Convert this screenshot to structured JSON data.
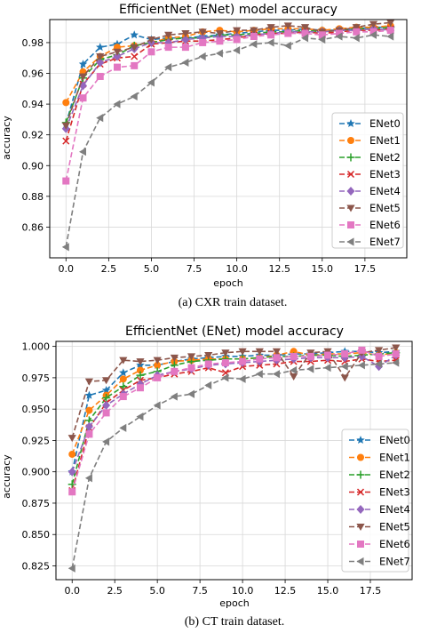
{
  "chart_data": [
    {
      "type": "line",
      "title": "EfficientNet (ENet) model accuracy",
      "xlabel": "epoch",
      "ylabel": "accuracy",
      "xlim": [
        -0.95,
        19.95
      ],
      "ylim": [
        0.84,
        0.995
      ],
      "xticks": [
        0.0,
        2.5,
        5.0,
        7.5,
        10.0,
        12.5,
        15.0,
        17.5
      ],
      "xtick_labels": [
        "0.0",
        "2.5",
        "5.0",
        "7.5",
        "10.0",
        "12.5",
        "15.0",
        "17.5"
      ],
      "yticks": [
        0.86,
        0.88,
        0.9,
        0.92,
        0.94,
        0.96,
        0.98
      ],
      "ytick_labels": [
        "0.86",
        "0.88",
        "0.90",
        "0.92",
        "0.94",
        "0.96",
        "0.98"
      ],
      "grid": true,
      "legend_position": "right",
      "caption": "(a) CXR train dataset.",
      "x": [
        0,
        1,
        2,
        3,
        4,
        5,
        6,
        7,
        8,
        9,
        10,
        11,
        12,
        13,
        14,
        15,
        16,
        17,
        18,
        19
      ],
      "series": [
        {
          "name": "ENet0",
          "color": "#1f77b4",
          "marker": "star",
          "values": [
            0.927,
            0.966,
            0.977,
            0.979,
            0.985,
            0.982,
            0.983,
            0.983,
            0.984,
            0.985,
            0.986,
            0.987,
            0.988,
            0.988,
            0.989,
            0.988,
            0.988,
            0.989,
            0.99,
            0.99
          ]
        },
        {
          "name": "ENet1",
          "color": "#ff7f0e",
          "marker": "circle",
          "values": [
            0.941,
            0.961,
            0.971,
            0.977,
            0.978,
            0.98,
            0.983,
            0.984,
            0.987,
            0.988,
            0.987,
            0.988,
            0.989,
            0.989,
            0.989,
            0.988,
            0.989,
            0.99,
            0.99,
            0.991
          ]
        },
        {
          "name": "ENet2",
          "color": "#2ca02c",
          "marker": "plus",
          "values": [
            0.928,
            0.957,
            0.969,
            0.972,
            0.978,
            0.98,
            0.982,
            0.983,
            0.983,
            0.985,
            0.985,
            0.986,
            0.987,
            0.987,
            0.988,
            0.987,
            0.988,
            0.989,
            0.989,
            0.99
          ]
        },
        {
          "name": "ENet3",
          "color": "#d62728",
          "marker": "x",
          "values": [
            0.916,
            0.953,
            0.966,
            0.97,
            0.971,
            0.979,
            0.98,
            0.981,
            0.981,
            0.982,
            0.983,
            0.985,
            0.986,
            0.986,
            0.987,
            0.986,
            0.987,
            0.988,
            0.988,
            0.989
          ]
        },
        {
          "name": "ENet4",
          "color": "#9467bd",
          "marker": "diamond",
          "values": [
            0.924,
            0.952,
            0.967,
            0.971,
            0.976,
            0.98,
            0.98,
            0.982,
            0.983,
            0.984,
            0.984,
            0.985,
            0.986,
            0.987,
            0.987,
            0.987,
            0.988,
            0.988,
            0.989,
            0.988
          ]
        },
        {
          "name": "ENet5",
          "color": "#8c564b",
          "marker": "triangle-down",
          "values": [
            0.926,
            0.958,
            0.971,
            0.974,
            0.977,
            0.982,
            0.985,
            0.986,
            0.987,
            0.986,
            0.988,
            0.988,
            0.99,
            0.991,
            0.99,
            0.987,
            0.988,
            0.99,
            0.992,
            0.993
          ]
        },
        {
          "name": "ENet6",
          "color": "#e377c2",
          "marker": "square",
          "values": [
            0.89,
            0.944,
            0.958,
            0.964,
            0.965,
            0.974,
            0.977,
            0.977,
            0.98,
            0.981,
            0.982,
            0.984,
            0.985,
            0.986,
            0.986,
            0.985,
            0.986,
            0.987,
            0.987,
            0.988
          ]
        },
        {
          "name": "ENet7",
          "color": "#7f7f7f",
          "marker": "triangle-left",
          "values": [
            0.847,
            0.909,
            0.931,
            0.94,
            0.945,
            0.954,
            0.964,
            0.967,
            0.971,
            0.973,
            0.975,
            0.979,
            0.98,
            0.978,
            0.983,
            0.982,
            0.984,
            0.983,
            0.985,
            0.984
          ]
        }
      ]
    },
    {
      "type": "line",
      "title": "EfficientNet (ENet) model accuracy",
      "xlabel": "epoch",
      "ylabel": "accuracy",
      "xlim": [
        -0.95,
        19.95
      ],
      "ylim": [
        0.814,
        1.004
      ],
      "xticks": [
        0.0,
        2.5,
        5.0,
        7.5,
        10.0,
        12.5,
        15.0,
        17.5
      ],
      "xtick_labels": [
        "0.0",
        "2.5",
        "5.0",
        "7.5",
        "10.0",
        "12.5",
        "15.0",
        "17.5"
      ],
      "yticks": [
        0.825,
        0.85,
        0.875,
        0.9,
        0.925,
        0.95,
        0.975,
        1.0
      ],
      "ytick_labels": [
        "0.825",
        "0.850",
        "0.875",
        "0.900",
        "0.925",
        "0.950",
        "0.975",
        "1.000"
      ],
      "grid": true,
      "legend_position": "lower right",
      "caption": "(b) CT train dataset.",
      "x": [
        0,
        1,
        2,
        3,
        4,
        5,
        6,
        7,
        8,
        9,
        10,
        11,
        12,
        13,
        14,
        15,
        16,
        17,
        18,
        19
      ],
      "series": [
        {
          "name": "ENet0",
          "color": "#1f77b4",
          "marker": "star",
          "values": [
            0.9,
            0.961,
            0.965,
            0.979,
            0.985,
            0.985,
            0.988,
            0.99,
            0.991,
            0.992,
            0.992,
            0.993,
            0.993,
            0.994,
            0.994,
            0.995,
            0.996,
            0.996,
            0.995,
            0.996
          ]
        },
        {
          "name": "ENet1",
          "color": "#ff7f0e",
          "marker": "circle",
          "values": [
            0.914,
            0.949,
            0.961,
            0.974,
            0.981,
            0.985,
            0.988,
            0.989,
            0.99,
            0.99,
            0.99,
            0.991,
            0.993,
            0.996,
            0.993,
            0.994,
            0.994,
            0.995,
            0.993,
            0.995
          ]
        },
        {
          "name": "ENet2",
          "color": "#2ca02c",
          "marker": "plus",
          "values": [
            0.89,
            0.941,
            0.959,
            0.968,
            0.977,
            0.98,
            0.985,
            0.988,
            0.989,
            0.99,
            0.99,
            0.991,
            0.992,
            0.992,
            0.993,
            0.993,
            0.992,
            0.993,
            0.994,
            0.995
          ]
        },
        {
          "name": "ENet3",
          "color": "#d62728",
          "marker": "x",
          "values": [
            0.885,
            0.935,
            0.955,
            0.965,
            0.973,
            0.975,
            0.978,
            0.98,
            0.983,
            0.979,
            0.984,
            0.985,
            0.986,
            0.988,
            0.988,
            0.989,
            0.988,
            0.99,
            0.988,
            0.989
          ]
        },
        {
          "name": "ENet4",
          "color": "#9467bd",
          "marker": "diamond",
          "values": [
            0.9,
            0.936,
            0.953,
            0.962,
            0.97,
            0.977,
            0.98,
            0.982,
            0.985,
            0.986,
            0.987,
            0.988,
            0.989,
            0.99,
            0.991,
            0.991,
            0.991,
            0.992,
            0.984,
            0.993
          ]
        },
        {
          "name": "ENet5",
          "color": "#8c564b",
          "marker": "triangle-down",
          "values": [
            0.927,
            0.972,
            0.973,
            0.989,
            0.988,
            0.989,
            0.991,
            0.992,
            0.993,
            0.995,
            0.996,
            0.996,
            0.996,
            0.976,
            0.995,
            0.996,
            0.975,
            0.995,
            0.997,
            0.999
          ]
        },
        {
          "name": "ENet6",
          "color": "#e377c2",
          "marker": "square",
          "values": [
            0.884,
            0.93,
            0.947,
            0.96,
            0.967,
            0.975,
            0.98,
            0.983,
            0.986,
            0.987,
            0.988,
            0.99,
            0.991,
            0.992,
            0.992,
            0.993,
            0.994,
            0.997,
            0.992,
            0.994
          ]
        },
        {
          "name": "ENet7",
          "color": "#7f7f7f",
          "marker": "triangle-left",
          "values": [
            0.823,
            0.895,
            0.924,
            0.935,
            0.944,
            0.953,
            0.96,
            0.962,
            0.969,
            0.975,
            0.974,
            0.978,
            0.978,
            0.981,
            0.982,
            0.983,
            0.984,
            0.985,
            0.986,
            0.987
          ]
        }
      ]
    }
  ]
}
